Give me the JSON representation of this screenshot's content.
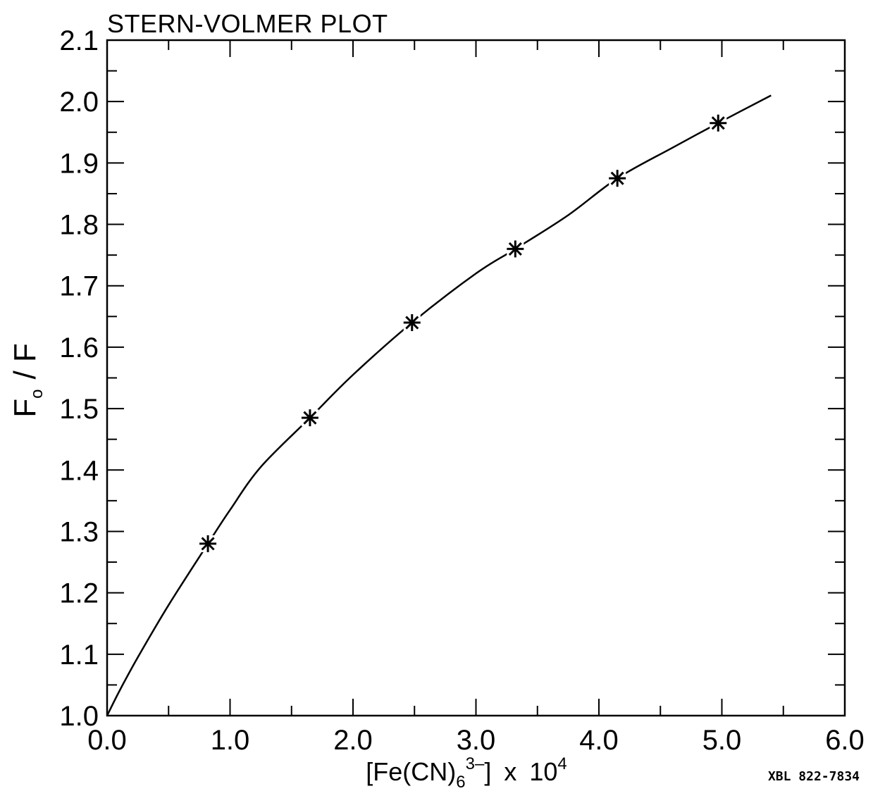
{
  "chart_data": {
    "type": "scatter",
    "title": "STERN-VOLMER PLOT",
    "xlabel": {
      "main": "[Fe(CN)",
      "sub": "6",
      "sup": "3–",
      "close": "]",
      "times": "x",
      "pow_base": "10",
      "pow_exp": "4"
    },
    "ylabel": {
      "f0": "F",
      "sub": "o",
      "rest": "/  F"
    },
    "xlim": [
      0.0,
      6.0
    ],
    "ylim": [
      1.0,
      2.1
    ],
    "x_ticks": [
      "0.0",
      "1.0",
      "2.0",
      "3.0",
      "4.0",
      "5.0",
      "6.0"
    ],
    "y_ticks": [
      "1.0",
      "1.1",
      "1.2",
      "1.3",
      "1.4",
      "1.5",
      "1.6",
      "1.7",
      "1.8",
      "1.9",
      "2.0",
      "2.1"
    ],
    "grid": false,
    "series": [
      {
        "marker": "asterisk",
        "x": [
          0.82,
          1.65,
          2.48,
          3.32,
          4.15,
          4.97
        ],
        "y": [
          1.28,
          1.485,
          1.64,
          1.76,
          1.875,
          1.965
        ]
      }
    ],
    "fit_curve": {
      "x": [
        0.0,
        0.1,
        0.25,
        0.5,
        0.82,
        1.0,
        1.25,
        1.65,
        2.0,
        2.48,
        3.0,
        3.32,
        3.75,
        4.15,
        4.6,
        4.97,
        5.4
      ],
      "y": [
        1.0,
        1.04,
        1.095,
        1.18,
        1.28,
        1.335,
        1.405,
        1.485,
        1.555,
        1.64,
        1.72,
        1.76,
        1.815,
        1.875,
        1.925,
        1.965,
        2.01
      ]
    },
    "note": "XBL 822-7834"
  }
}
